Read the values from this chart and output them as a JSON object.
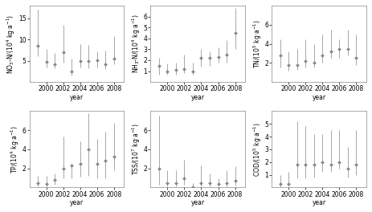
{
  "panels": [
    {
      "ylabel": "NO$_3$-N/(10$^4$ kg·a$^{-1}$)",
      "ylim": [
        0,
        18
      ],
      "yticks": [
        5,
        10,
        15
      ],
      "years": [
        1999,
        2000,
        2001,
        2002,
        2003,
        2004,
        2005,
        2006,
        2007,
        2008
      ],
      "mean": [
        8.5,
        4.8,
        4.2,
        7.0,
        2.5,
        5.0,
        5.0,
        5.2,
        4.2,
        5.5
      ],
      "low": [
        6.0,
        3.5,
        3.2,
        4.5,
        1.5,
        3.5,
        3.2,
        3.5,
        3.0,
        4.2
      ],
      "high": [
        17.0,
        7.8,
        6.8,
        13.5,
        5.5,
        9.0,
        8.8,
        7.2,
        7.5,
        10.8
      ]
    },
    {
      "ylabel": "NH$_3$-N/(10$^4$ kg·a$^{-1}$)",
      "ylim": [
        0,
        7
      ],
      "yticks": [
        1,
        2,
        3,
        4,
        5,
        6
      ],
      "years": [
        1999,
        2000,
        2001,
        2002,
        2003,
        2004,
        2005,
        2006,
        2007,
        2008
      ],
      "mean": [
        1.5,
        1.0,
        1.1,
        1.2,
        1.0,
        2.2,
        2.2,
        2.3,
        2.5,
        4.5
      ],
      "low": [
        0.7,
        0.7,
        0.7,
        0.8,
        0.7,
        1.4,
        1.5,
        1.8,
        1.8,
        3.0
      ],
      "high": [
        2.2,
        1.7,
        1.8,
        2.5,
        1.8,
        3.0,
        2.8,
        3.2,
        3.8,
        6.8
      ]
    },
    {
      "ylabel": "TN/(10$^5$ kg·a$^{-1}$)",
      "ylim": [
        0,
        8
      ],
      "yticks": [
        2,
        4,
        6
      ],
      "years": [
        1999,
        2000,
        2001,
        2002,
        2003,
        2004,
        2005,
        2006,
        2007,
        2008
      ],
      "mean": [
        2.8,
        1.8,
        1.8,
        2.2,
        2.0,
        2.8,
        3.2,
        3.5,
        3.5,
        2.5
      ],
      "low": [
        1.5,
        1.2,
        1.3,
        1.5,
        1.5,
        2.0,
        2.5,
        2.5,
        2.8,
        1.8
      ],
      "high": [
        4.5,
        3.2,
        3.5,
        4.5,
        4.0,
        5.0,
        5.5,
        4.5,
        5.5,
        5.0
      ]
    },
    {
      "ylabel": "TP/(10$^4$ kg·a$^{-1}$)",
      "ylim": [
        0,
        8
      ],
      "yticks": [
        2,
        4,
        6
      ],
      "years": [
        1999,
        2000,
        2001,
        2002,
        2003,
        2004,
        2005,
        2006,
        2007,
        2008
      ],
      "mean": [
        0.5,
        0.4,
        0.8,
        2.0,
        2.3,
        2.5,
        4.0,
        2.5,
        2.8,
        3.2
      ],
      "low": [
        0.1,
        0.1,
        0.3,
        1.0,
        1.0,
        1.1,
        1.2,
        1.0,
        1.0,
        1.8
      ],
      "high": [
        1.2,
        1.2,
        1.5,
        5.3,
        2.5,
        4.8,
        7.8,
        5.1,
        5.8,
        6.8
      ]
    },
    {
      "ylabel": "TSS/(10$^7$ kg·a$^{-1}$)",
      "ylim": [
        0,
        8
      ],
      "yticks": [
        2,
        4,
        6
      ],
      "years": [
        1999,
        2000,
        2001,
        2002,
        2003,
        2004,
        2005,
        2006,
        2007,
        2008
      ],
      "mean": [
        2.0,
        0.5,
        0.5,
        1.0,
        0.05,
        0.5,
        0.5,
        0.4,
        0.5,
        0.7
      ],
      "low": [
        0.3,
        0.1,
        0.1,
        0.3,
        0.01,
        0.1,
        0.1,
        0.1,
        0.1,
        0.2
      ],
      "high": [
        7.5,
        1.8,
        1.8,
        2.9,
        0.5,
        2.3,
        1.5,
        1.0,
        1.8,
        2.2
      ]
    },
    {
      "ylabel": "COD/(10$^5$ kg·a$^{-1}$)",
      "ylim": [
        0,
        6
      ],
      "yticks": [
        1,
        2,
        3,
        4,
        5
      ],
      "years": [
        1999,
        2000,
        2001,
        2002,
        2003,
        2004,
        2005,
        2006,
        2007,
        2008
      ],
      "mean": [
        0.3,
        0.3,
        1.8,
        1.8,
        1.8,
        2.0,
        1.8,
        2.0,
        1.5,
        1.8
      ],
      "low": [
        0.05,
        0.1,
        0.7,
        0.7,
        0.8,
        1.2,
        1.2,
        1.5,
        0.8,
        1.0
      ],
      "high": [
        1.0,
        1.2,
        5.2,
        4.8,
        4.2,
        4.2,
        4.5,
        4.5,
        3.2,
        4.5
      ]
    }
  ],
  "marker": "D",
  "marker_size": 2.0,
  "marker_color": "#888888",
  "line_color": "#999999",
  "bg_color": "#ffffff",
  "tick_fontsize": 5.5,
  "label_fontsize": 5.5,
  "xlabel": "year"
}
